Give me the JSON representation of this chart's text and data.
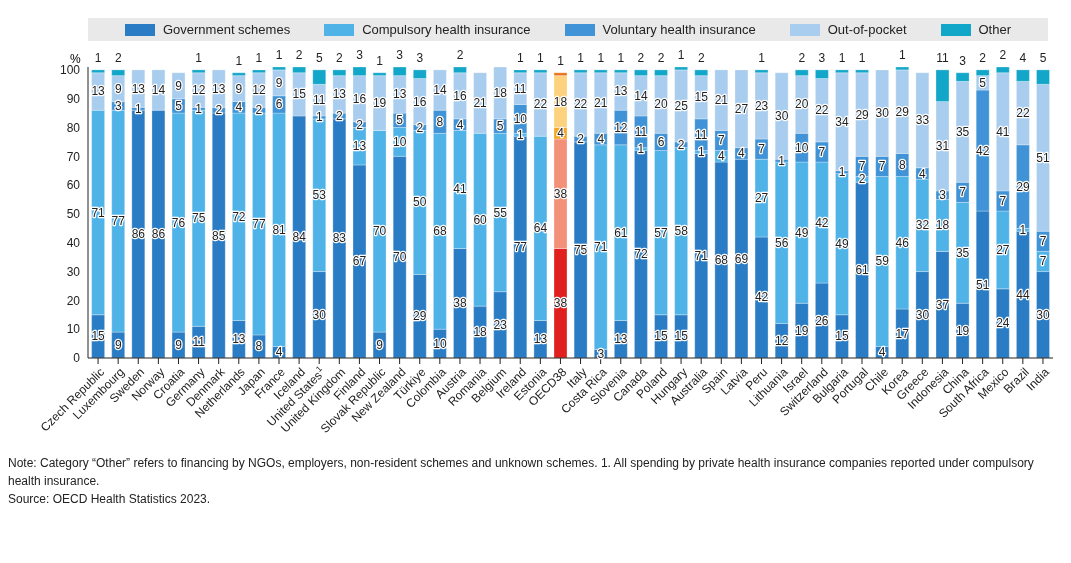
{
  "chart_data": {
    "type": "bar",
    "stacked": true,
    "ylabel": "%",
    "ylim": [
      0,
      101
    ],
    "yticks": [
      0,
      10,
      20,
      30,
      40,
      50,
      60,
      70,
      80,
      90,
      100
    ],
    "grid": false,
    "legend": "top",
    "data_labels": true,
    "categories": [
      "Czech Republic",
      "Luxembourg",
      "Sweden",
      "Norway",
      "Croatia",
      "Germany",
      "Denmark",
      "Netherlands",
      "Japan",
      "France",
      "Iceland",
      "United States$^{1}$",
      "United Kingdom",
      "Finland",
      "Slovak Republic",
      "New Zealand",
      "Türkiye",
      "Colombia",
      "Austria",
      "Romania",
      "Belgium",
      "Ireland",
      "Estonia",
      "OECD38",
      "Italy",
      "Costa Rica",
      "Slovenia",
      "Canada",
      "Poland",
      "Hungary",
      "Australia",
      "Spain",
      "Latvia",
      "Peru",
      "Lithuania",
      "Israel",
      "Switzerland",
      "Bulgaria",
      "Portugal",
      "Chile",
      "Korea",
      "Greece",
      "Indonesia",
      "China",
      "South Africa",
      "Mexico",
      "Brazil",
      "India"
    ],
    "series": [
      {
        "name": "Government schemes",
        "color": "#2a7cc4",
        "colors": [
          "#2a7cc4",
          "#2a7cc4",
          "#2a7cc4",
          "#2a7cc4",
          "#2a7cc4",
          "#2a7cc4",
          "#2a7cc4",
          "#2a7cc4",
          "#2a7cc4",
          "#2a7cc4",
          "#2a7cc4",
          "#2a7cc4",
          "#2a7cc4",
          "#2a7cc4",
          "#2a7cc4",
          "#2a7cc4",
          "#2a7cc4",
          "#2a7cc4",
          "#2a7cc4",
          "#2a7cc4",
          "#2a7cc4",
          "#2a7cc4",
          "#2a7cc4",
          "#e0201e",
          "#2a7cc4",
          "#2a7cc4",
          "#2a7cc4",
          "#2a7cc4",
          "#2a7cc4",
          "#2a7cc4",
          "#2a7cc4",
          "#2a7cc4",
          "#2a7cc4",
          "#2a7cc4",
          "#2a7cc4",
          "#2a7cc4",
          "#2a7cc4",
          "#2a7cc4",
          "#2a7cc4",
          "#2a7cc4",
          "#2a7cc4",
          "#2a7cc4",
          "#2a7cc4",
          "#2a7cc4",
          "#2a7cc4",
          "#2a7cc4",
          "#2a7cc4",
          "#2a7cc4"
        ],
        "values": [
          15,
          9,
          86,
          86,
          9,
          11,
          85,
          13,
          8,
          4,
          84,
          30,
          83,
          67,
          9,
          70,
          29,
          10,
          38,
          18,
          23,
          77,
          13,
          38,
          75,
          3,
          13,
          72,
          15,
          15,
          71,
          68,
          69,
          42,
          12,
          19,
          26,
          15,
          61,
          4,
          17,
          30,
          37,
          19,
          51,
          24,
          44,
          30
        ]
      },
      {
        "name": "Compulsory health insurance",
        "color": "#4fb3e8",
        "colors": [
          "#4fb3e8",
          "#4fb3e8",
          "#4fb3e8",
          "#4fb3e8",
          "#4fb3e8",
          "#4fb3e8",
          "#4fb3e8",
          "#4fb3e8",
          "#4fb3e8",
          "#4fb3e8",
          "#4fb3e8",
          "#4fb3e8",
          "#4fb3e8",
          "#4fb3e8",
          "#4fb3e8",
          "#4fb3e8",
          "#4fb3e8",
          "#4fb3e8",
          "#4fb3e8",
          "#4fb3e8",
          "#4fb3e8",
          "#4fb3e8",
          "#4fb3e8",
          "#f2907a",
          "#4fb3e8",
          "#4fb3e8",
          "#4fb3e8",
          "#4fb3e8",
          "#4fb3e8",
          "#4fb3e8",
          "#4fb3e8",
          "#4fb3e8",
          "#4fb3e8",
          "#4fb3e8",
          "#4fb3e8",
          "#4fb3e8",
          "#4fb3e8",
          "#4fb3e8",
          "#4fb3e8",
          "#4fb3e8",
          "#4fb3e8",
          "#4fb3e8",
          "#4fb3e8",
          "#4fb3e8",
          "#4fb3e8",
          "#4fb3e8",
          "#4fb3e8",
          "#4fb3e8"
        ],
        "values": [
          71,
          77,
          null,
          null,
          76,
          75,
          null,
          72,
          77,
          81,
          null,
          53,
          null,
          13,
          70,
          10,
          50,
          68,
          41,
          60,
          55,
          1,
          64,
          38,
          null,
          71,
          61,
          1,
          57,
          58,
          1,
          4,
          null,
          27,
          56,
          49,
          42,
          49,
          2,
          59,
          46,
          32,
          18,
          35,
          null,
          27,
          1,
          7
        ]
      },
      {
        "name": "Voluntary health insurance",
        "color": "#3f93d6",
        "colors": [
          "#3f93d6",
          "#3f93d6",
          "#3f93d6",
          "#3f93d6",
          "#3f93d6",
          "#3f93d6",
          "#3f93d6",
          "#3f93d6",
          "#3f93d6",
          "#3f93d6",
          "#3f93d6",
          "#3f93d6",
          "#3f93d6",
          "#3f93d6",
          "#3f93d6",
          "#3f93d6",
          "#3f93d6",
          "#3f93d6",
          "#3f93d6",
          "#3f93d6",
          "#3f93d6",
          "#3f93d6",
          "#3f93d6",
          "#f5a623",
          "#3f93d6",
          "#3f93d6",
          "#3f93d6",
          "#3f93d6",
          "#3f93d6",
          "#3f93d6",
          "#3f93d6",
          "#3f93d6",
          "#3f93d6",
          "#3f93d6",
          "#3f93d6",
          "#3f93d6",
          "#3f93d6",
          "#3f93d6",
          "#3f93d6",
          "#3f93d6",
          "#3f93d6",
          "#3f93d6",
          "#3f93d6",
          "#3f93d6",
          "#3f93d6",
          "#3f93d6",
          "#3f93d6",
          "#3f93d6"
        ],
        "values": [
          null,
          3,
          1,
          null,
          5,
          1,
          2,
          4,
          2,
          6,
          null,
          1,
          2,
          2,
          null,
          5,
          2,
          8,
          4,
          null,
          5,
          10,
          null,
          4,
          2,
          4,
          12,
          11,
          6,
          2,
          11,
          7,
          4,
          7,
          1,
          10,
          7,
          1,
          7,
          7,
          8,
          4,
          3,
          7,
          42,
          7,
          29,
          7
        ]
      },
      {
        "name": "Out-of-pocket",
        "color": "#a8cdee",
        "colors": [
          "#a8cdee",
          "#a8cdee",
          "#a8cdee",
          "#a8cdee",
          "#a8cdee",
          "#a8cdee",
          "#a8cdee",
          "#a8cdee",
          "#a8cdee",
          "#a8cdee",
          "#a8cdee",
          "#a8cdee",
          "#a8cdee",
          "#a8cdee",
          "#a8cdee",
          "#a8cdee",
          "#a8cdee",
          "#a8cdee",
          "#a8cdee",
          "#a8cdee",
          "#a8cdee",
          "#a8cdee",
          "#a8cdee",
          "#fdd27f",
          "#a8cdee",
          "#a8cdee",
          "#a8cdee",
          "#a8cdee",
          "#a8cdee",
          "#a8cdee",
          "#a8cdee",
          "#a8cdee",
          "#a8cdee",
          "#a8cdee",
          "#a8cdee",
          "#a8cdee",
          "#a8cdee",
          "#a8cdee",
          "#a8cdee",
          "#a8cdee",
          "#a8cdee",
          "#a8cdee",
          "#a8cdee",
          "#a8cdee",
          "#a8cdee",
          "#a8cdee",
          "#a8cdee",
          "#a8cdee"
        ],
        "values": [
          13,
          9,
          13,
          14,
          9,
          12,
          13,
          9,
          12,
          9,
          15,
          11,
          13,
          16,
          19,
          13,
          16,
          14,
          16,
          21,
          18,
          11,
          22,
          18,
          22,
          21,
          13,
          14,
          20,
          25,
          15,
          21,
          27,
          23,
          30,
          20,
          22,
          34,
          29,
          30,
          29,
          33,
          31,
          35,
          5,
          41,
          22,
          51
        ]
      },
      {
        "name": "Other",
        "color": "#12a6c9",
        "colors": [
          "#12a6c9",
          "#12a6c9",
          "#12a6c9",
          "#12a6c9",
          "#12a6c9",
          "#12a6c9",
          "#12a6c9",
          "#12a6c9",
          "#12a6c9",
          "#12a6c9",
          "#12a6c9",
          "#12a6c9",
          "#12a6c9",
          "#12a6c9",
          "#12a6c9",
          "#12a6c9",
          "#12a6c9",
          "#12a6c9",
          "#12a6c9",
          "#12a6c9",
          "#12a6c9",
          "#12a6c9",
          "#12a6c9",
          "#e8731a",
          "#12a6c9",
          "#12a6c9",
          "#12a6c9",
          "#12a6c9",
          "#12a6c9",
          "#12a6c9",
          "#12a6c9",
          "#12a6c9",
          "#12a6c9",
          "#12a6c9",
          "#12a6c9",
          "#12a6c9",
          "#12a6c9",
          "#12a6c9",
          "#12a6c9",
          "#12a6c9",
          "#12a6c9",
          "#12a6c9",
          "#12a6c9",
          "#12a6c9",
          "#12a6c9",
          "#12a6c9",
          "#12a6c9",
          "#12a6c9"
        ],
        "values": [
          1,
          2,
          null,
          null,
          null,
          1,
          null,
          1,
          1,
          1,
          2,
          5,
          2,
          3,
          1,
          3,
          3,
          null,
          2,
          null,
          null,
          1,
          1,
          1,
          1,
          1,
          1,
          2,
          2,
          1,
          2,
          null,
          null,
          1,
          null,
          2,
          3,
          1,
          1,
          null,
          1,
          null,
          11,
          3,
          2,
          2,
          4,
          5
        ]
      }
    ],
    "annotations": [
      "Note: Category “Other” refers to financing by NGOs, employers, non-resident schemes and unknown schemes. 1. All spending by private health insurance companies reported under compulsory health insurance.",
      "Source: OECD Health Statistics 2023."
    ]
  }
}
